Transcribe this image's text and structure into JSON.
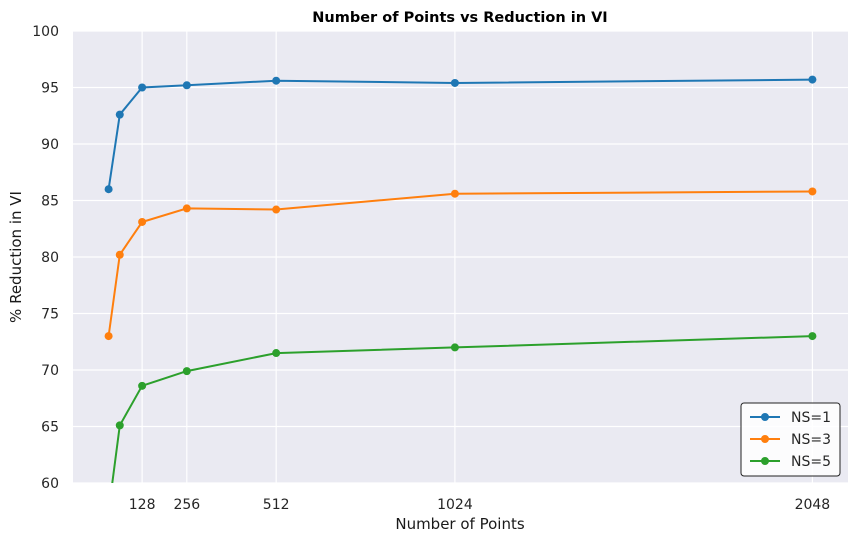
{
  "chart_data": {
    "type": "line",
    "title": "Number of Points vs Reduction in VI",
    "xlabel": "Number of Points",
    "ylabel": "% Reduction in VI",
    "x": [
      32,
      64,
      128,
      256,
      512,
      1024,
      2048
    ],
    "xticks": [
      "128",
      "256",
      "512",
      "1024",
      "2048"
    ],
    "xlim": [
      -70,
      2150
    ],
    "yticks": [
      "60",
      "65",
      "70",
      "75",
      "80",
      "85",
      "90",
      "95",
      "100"
    ],
    "ylim": [
      60,
      100
    ],
    "grid": true,
    "legend_position": "bottom-right",
    "series": [
      {
        "name": "NS=1",
        "color": "#1f77b4",
        "values": [
          86.0,
          92.6,
          95.0,
          95.2,
          95.6,
          95.4,
          95.7
        ]
      },
      {
        "name": "NS=3",
        "color": "#ff7f0e",
        "values": [
          73.0,
          80.2,
          83.1,
          84.3,
          84.2,
          85.6,
          85.8
        ]
      },
      {
        "name": "NS=5",
        "color": "#2ca02c",
        "values": [
          57.5,
          65.1,
          68.6,
          69.9,
          71.5,
          72.0,
          73.0
        ]
      }
    ]
  }
}
